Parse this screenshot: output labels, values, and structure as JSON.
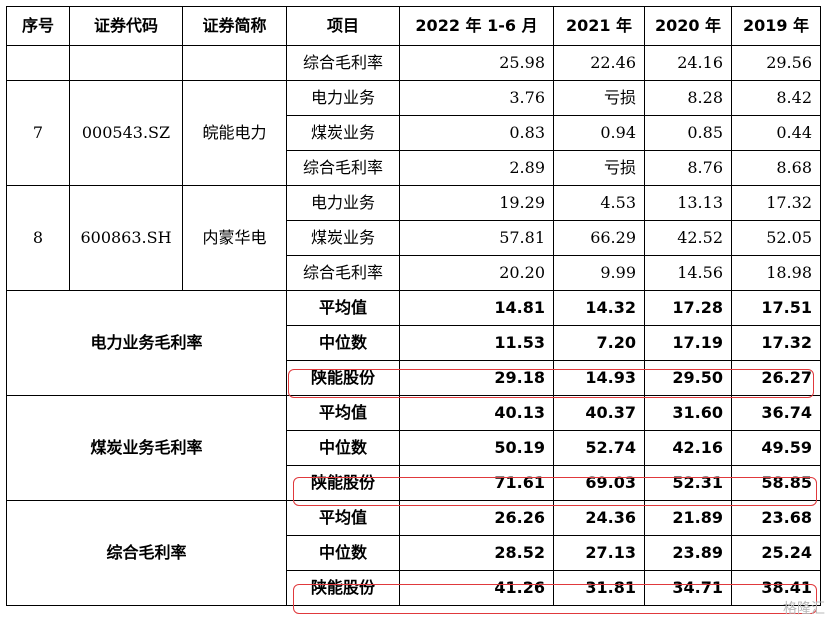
{
  "headers": [
    "序号",
    "证券代码",
    "证券简称",
    "项目",
    "2022 年 1-6 月",
    "2021 年",
    "2020 年",
    "2019 年"
  ],
  "rows": [
    {
      "item": "综合毛利率",
      "values": [
        "25.98",
        "22.46",
        "24.16",
        "29.56"
      ]
    },
    {
      "no": "7",
      "code": "000543.SZ",
      "name": "皖能电力"
    },
    {
      "item": "电力业务",
      "values": [
        "3.76",
        "亏损",
        "8.28",
        "8.42"
      ]
    },
    {
      "item": "煤炭业务",
      "values": [
        "0.83",
        "0.94",
        "0.85",
        "0.44"
      ]
    },
    {
      "item": "综合毛利率",
      "values": [
        "2.89",
        "亏损",
        "8.76",
        "8.68"
      ]
    },
    {
      "no": "8",
      "code": "600863.SH",
      "name": "内蒙华电"
    },
    {
      "item": "电力业务",
      "values": [
        "19.29",
        "4.53",
        "13.13",
        "17.32"
      ]
    },
    {
      "item": "煤炭业务",
      "values": [
        "57.81",
        "66.29",
        "42.52",
        "52.05"
      ]
    },
    {
      "item": "综合毛利率",
      "values": [
        "20.20",
        "9.99",
        "14.56",
        "18.98"
      ]
    }
  ],
  "summary": [
    {
      "group": "电力业务毛利率",
      "rows": [
        {
          "item": "平均值",
          "values": [
            "14.81",
            "14.32",
            "17.28",
            "17.51"
          ]
        },
        {
          "item": "中位数",
          "values": [
            "11.53",
            "7.20",
            "17.19",
            "17.32"
          ]
        },
        {
          "item": "陕能股份",
          "values": [
            "29.18",
            "14.93",
            "29.50",
            "26.27"
          ]
        }
      ]
    },
    {
      "group": "煤炭业务毛利率",
      "rows": [
        {
          "item": "平均值",
          "values": [
            "40.13",
            "40.37",
            "31.60",
            "36.74"
          ]
        },
        {
          "item": "中位数",
          "values": [
            "50.19",
            "52.74",
            "42.16",
            "49.59"
          ]
        },
        {
          "item": "陕能股份",
          "values": [
            "71.61",
            "69.03",
            "52.31",
            "58.85"
          ]
        }
      ]
    },
    {
      "group": "综合毛利率",
      "rows": [
        {
          "item": "平均值",
          "values": [
            "26.26",
            "24.36",
            "21.89",
            "23.68"
          ]
        },
        {
          "item": "中位数",
          "values": [
            "28.52",
            "27.13",
            "23.89",
            "25.24"
          ]
        },
        {
          "item": "陕能股份",
          "values": [
            "41.26",
            "31.81",
            "34.71",
            "38.41"
          ]
        }
      ]
    }
  ],
  "highlight_color": "#e0393c",
  "watermark": "格隆汇"
}
